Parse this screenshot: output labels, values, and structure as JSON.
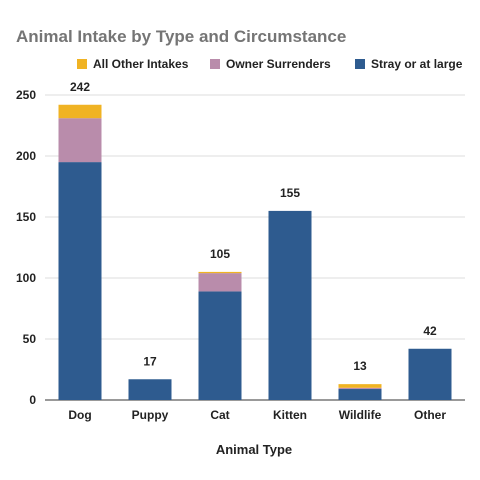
{
  "chart_data": {
    "type": "bar",
    "stacked": true,
    "title": "Animal Intake by Type and Circumstance",
    "xlabel": "Animal Type",
    "ylabel": "",
    "ylim": [
      0,
      250
    ],
    "yticks": [
      0,
      50,
      100,
      150,
      200,
      250
    ],
    "grid": true,
    "legend_position": "top",
    "categories": [
      "Dog",
      "Puppy",
      "Cat",
      "Kitten",
      "Wildlife",
      "Other"
    ],
    "series": [
      {
        "name": "Stray or at large",
        "color": "#2e5b8f",
        "values": [
          195,
          17,
          89,
          155,
          9,
          42
        ]
      },
      {
        "name": "Owner Surrenders",
        "color": "#b98cab",
        "values": [
          36,
          0,
          15,
          0,
          1,
          0
        ]
      },
      {
        "name": "All Other Intakes",
        "color": "#f0b323",
        "values": [
          11,
          0,
          1,
          0,
          3,
          0
        ]
      }
    ],
    "legend_order": [
      "All Other Intakes",
      "Owner Surrenders",
      "Stray or at large"
    ],
    "totals": [
      242,
      17,
      105,
      155,
      13,
      42
    ]
  }
}
